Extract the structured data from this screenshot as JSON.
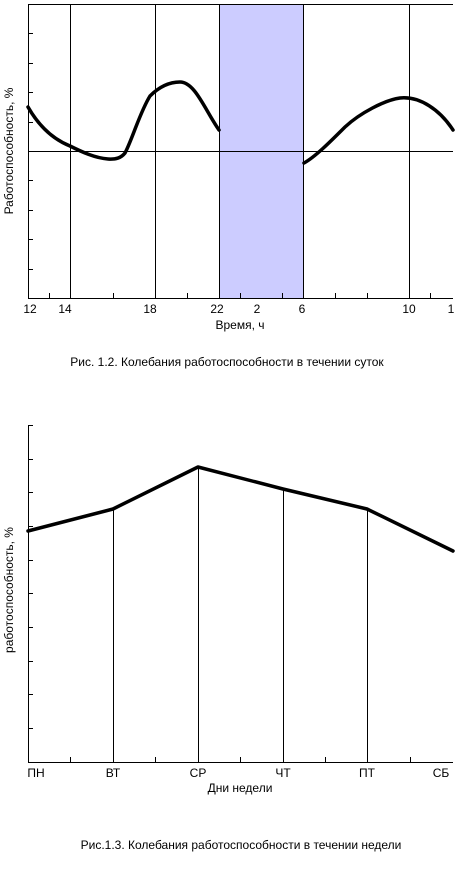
{
  "chart_data": [
    {
      "type": "line",
      "title": "",
      "caption": "Рис. 1.2. Колебания работоспособности в течении суток",
      "xlabel": "Время, ч",
      "ylabel": "Работоспособность, %",
      "tick_labels": [
        "12",
        "14",
        "18",
        "22",
        "2",
        "6",
        "10",
        "1"
      ],
      "shaded_band": {
        "from_label": "22",
        "to_label": "6",
        "color": "#ccccff"
      },
      "grid": "vertical",
      "line_color": "#000000"
    },
    {
      "type": "line",
      "title": "",
      "caption": "Рис.1.3. Колебания работоспособности в течении недели",
      "xlabel": "Дни недели",
      "ylabel": "работоспособность, %",
      "categories": [
        "ПН",
        "ВТ",
        "СР",
        "ЧТ",
        "ПТ",
        "СБ"
      ],
      "grid": "vertical",
      "line_color": "#000000"
    }
  ]
}
